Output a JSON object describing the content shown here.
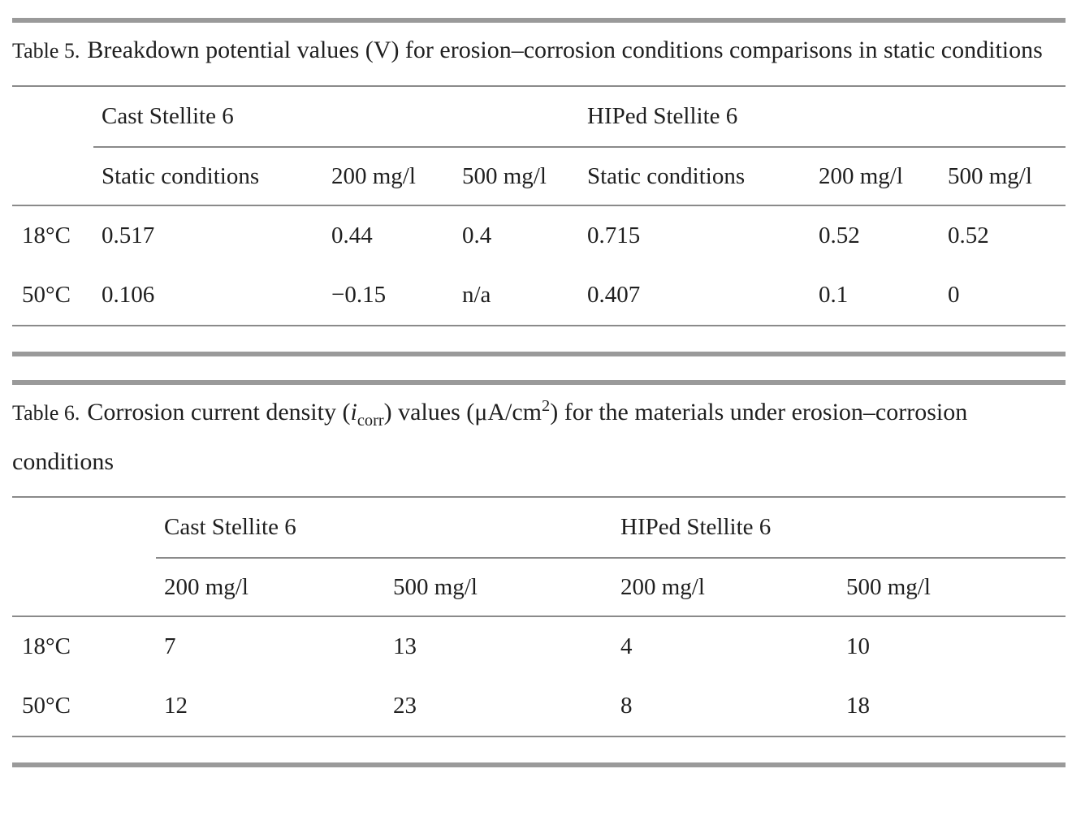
{
  "colors": {
    "background": "#ffffff",
    "text": "#1f1f1f",
    "thin_rule": "#8a8a8a",
    "thick_bar": "#9a9a9a"
  },
  "tables": [
    {
      "label": "Table 5.",
      "title": "Breakdown potential values (V) for erosion–corrosion conditions comparisons in static conditions",
      "group_headers": [
        "Cast Stellite 6",
        "HIPed Stellite 6"
      ],
      "column_headers": [
        "Static conditions",
        "200 mg/l",
        "500 mg/l",
        "Static conditions",
        "200 mg/l",
        "500 mg/l"
      ],
      "rows": [
        {
          "label": "18°C",
          "values": [
            "0.517",
            "0.44",
            "0.4",
            "0.715",
            "0.52",
            "0.52"
          ]
        },
        {
          "label": "50°C",
          "values": [
            "0.106",
            "−0.15",
            "n/a",
            "0.407",
            "0.1",
            "0"
          ]
        }
      ]
    },
    {
      "label": "Table 6.",
      "title_parts": {
        "pre": "Corrosion current density (",
        "symbol": "i",
        "subscript": "corr",
        "mid": ") values (μA/cm",
        "superscript": "2",
        "post": ") for the materials under erosion–corrosion conditions"
      },
      "group_headers": [
        "Cast Stellite 6",
        "HIPed Stellite 6"
      ],
      "column_headers": [
        "200 mg/l",
        "500 mg/l",
        "200 mg/l",
        "500 mg/l"
      ],
      "rows": [
        {
          "label": "18°C",
          "values": [
            "7",
            "13",
            "4",
            "10"
          ]
        },
        {
          "label": "50°C",
          "values": [
            "12",
            "23",
            "8",
            "18"
          ]
        }
      ]
    }
  ]
}
